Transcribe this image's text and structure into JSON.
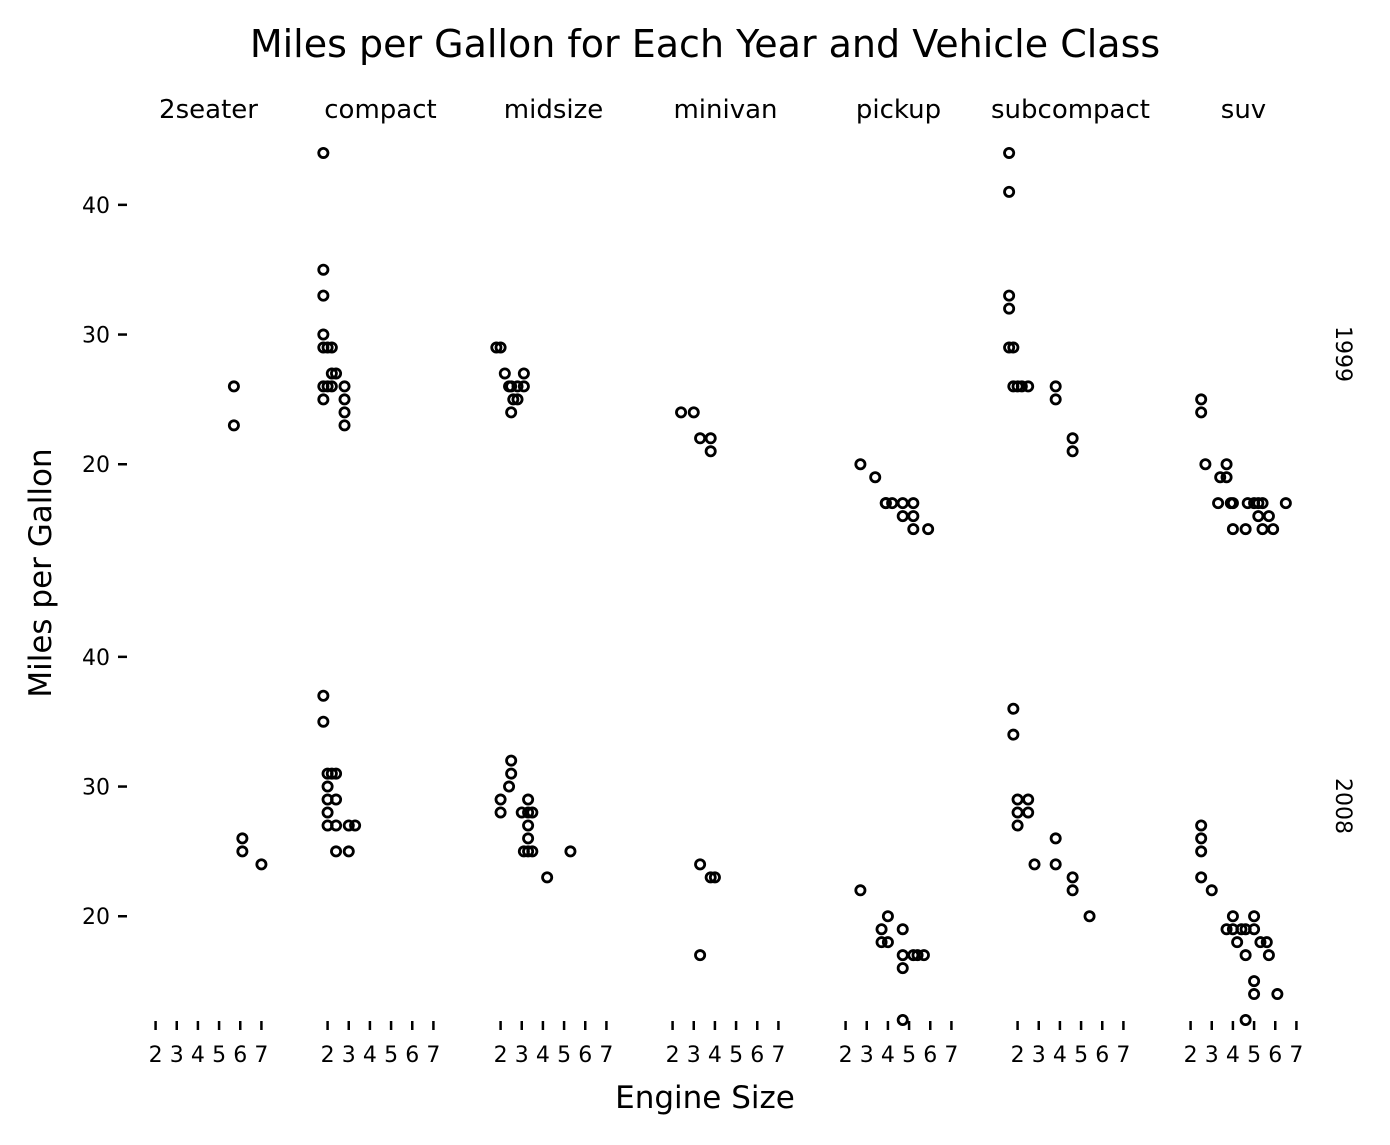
{
  "chart_data": {
    "type": "scatter",
    "title": "Miles per Gallon for Each Year and Vehicle Class",
    "xlabel": "Engine Size",
    "ylabel": "Miles per Gallon",
    "columns": [
      "2seater",
      "compact",
      "midsize",
      "minivan",
      "pickup",
      "subcompact",
      "suv"
    ],
    "rows": [
      "1999",
      "2008"
    ],
    "x_ticks": [
      2,
      3,
      4,
      5,
      6,
      7
    ],
    "y_ticks": [
      20,
      30,
      40
    ],
    "xlim": [
      1.5,
      7.5
    ],
    "ylim": [
      12,
      45
    ],
    "grid": false,
    "marker_color": "#000000",
    "panels": [
      {
        "column": "2seater",
        "row": "1999",
        "points": [
          [
            5.7,
            26
          ],
          [
            5.7,
            23
          ]
        ]
      },
      {
        "column": "compact",
        "row": "1999",
        "points": [
          [
            1.8,
            44
          ],
          [
            1.8,
            35
          ],
          [
            1.8,
            33
          ],
          [
            1.8,
            30
          ],
          [
            1.8,
            29
          ],
          [
            2.0,
            29
          ],
          [
            2.2,
            29
          ],
          [
            2.2,
            27
          ],
          [
            2.0,
            26
          ],
          [
            1.8,
            26
          ],
          [
            1.8,
            25
          ],
          [
            2.2,
            26
          ],
          [
            2.4,
            27
          ],
          [
            2.8,
            26
          ],
          [
            2.8,
            25
          ],
          [
            2.8,
            24
          ],
          [
            2.8,
            23
          ]
        ]
      },
      {
        "column": "midsize",
        "row": "1999",
        "points": [
          [
            1.8,
            29
          ],
          [
            2.0,
            29
          ],
          [
            2.2,
            27
          ],
          [
            2.4,
            26
          ],
          [
            2.5,
            26
          ],
          [
            2.8,
            26
          ],
          [
            2.8,
            25
          ],
          [
            2.6,
            25
          ],
          [
            3.1,
            27
          ],
          [
            3.1,
            26
          ],
          [
            2.5,
            24
          ]
        ]
      },
      {
        "column": "minivan",
        "row": "1999",
        "points": [
          [
            2.4,
            24
          ],
          [
            3.0,
            24
          ],
          [
            3.3,
            22
          ],
          [
            3.8,
            22
          ],
          [
            3.8,
            21
          ]
        ]
      },
      {
        "column": "pickup",
        "row": "1999",
        "points": [
          [
            2.7,
            20
          ],
          [
            3.4,
            19
          ],
          [
            3.9,
            17
          ],
          [
            3.9,
            17
          ],
          [
            4.2,
            17
          ],
          [
            4.7,
            17
          ],
          [
            4.7,
            16
          ],
          [
            5.2,
            17
          ],
          [
            5.2,
            16
          ],
          [
            5.2,
            15
          ],
          [
            5.9,
            15
          ]
        ]
      },
      {
        "column": "subcompact",
        "row": "1999",
        "points": [
          [
            1.6,
            44
          ],
          [
            1.6,
            41
          ],
          [
            1.6,
            33
          ],
          [
            1.6,
            32
          ],
          [
            1.6,
            29
          ],
          [
            1.8,
            29
          ],
          [
            1.8,
            26
          ],
          [
            2.0,
            26
          ],
          [
            2.2,
            26
          ],
          [
            2.5,
            26
          ],
          [
            3.8,
            26
          ],
          [
            3.8,
            25
          ],
          [
            4.6,
            22
          ],
          [
            4.6,
            21
          ]
        ]
      },
      {
        "column": "suv",
        "row": "1999",
        "points": [
          [
            2.5,
            25
          ],
          [
            2.5,
            24
          ],
          [
            2.7,
            20
          ],
          [
            3.4,
            19
          ],
          [
            3.7,
            20
          ],
          [
            3.7,
            19
          ],
          [
            3.3,
            17
          ],
          [
            3.9,
            17
          ],
          [
            4.0,
            17
          ],
          [
            4.0,
            15
          ],
          [
            4.6,
            15
          ],
          [
            4.7,
            17
          ],
          [
            5.0,
            17
          ],
          [
            5.2,
            17
          ],
          [
            5.4,
            17
          ],
          [
            5.2,
            16
          ],
          [
            5.7,
            16
          ],
          [
            5.9,
            15
          ],
          [
            6.5,
            17
          ],
          [
            5.4,
            15
          ]
        ]
      },
      {
        "column": "2seater",
        "row": "2008",
        "points": [
          [
            6.1,
            26
          ],
          [
            6.1,
            25
          ],
          [
            7.0,
            24
          ]
        ]
      },
      {
        "column": "compact",
        "row": "2008",
        "points": [
          [
            1.8,
            37
          ],
          [
            1.8,
            35
          ],
          [
            2.0,
            31
          ],
          [
            2.2,
            31
          ],
          [
            2.4,
            31
          ],
          [
            2.0,
            30
          ],
          [
            2.0,
            29
          ],
          [
            2.4,
            29
          ],
          [
            2.0,
            28
          ],
          [
            2.0,
            27
          ],
          [
            2.4,
            27
          ],
          [
            2.4,
            25
          ],
          [
            3.0,
            25
          ],
          [
            3.0,
            27
          ],
          [
            3.3,
            27
          ]
        ]
      },
      {
        "column": "midsize",
        "row": "2008",
        "points": [
          [
            2.0,
            29
          ],
          [
            2.0,
            28
          ],
          [
            2.5,
            32
          ],
          [
            2.5,
            31
          ],
          [
            2.4,
            30
          ],
          [
            3.3,
            29
          ],
          [
            3.3,
            28
          ],
          [
            3.0,
            28
          ],
          [
            3.5,
            28
          ],
          [
            3.3,
            27
          ],
          [
            3.3,
            26
          ],
          [
            3.1,
            25
          ],
          [
            3.3,
            25
          ],
          [
            3.5,
            25
          ],
          [
            5.3,
            25
          ],
          [
            4.2,
            23
          ]
        ]
      },
      {
        "column": "minivan",
        "row": "2008",
        "points": [
          [
            3.3,
            24
          ],
          [
            3.8,
            23
          ],
          [
            4.0,
            23
          ],
          [
            3.3,
            17
          ]
        ]
      },
      {
        "column": "pickup",
        "row": "2008",
        "points": [
          [
            2.7,
            22
          ],
          [
            3.7,
            19
          ],
          [
            3.7,
            18
          ],
          [
            4.0,
            20
          ],
          [
            4.0,
            18
          ],
          [
            4.7,
            19
          ],
          [
            4.7,
            17
          ],
          [
            4.7,
            16
          ],
          [
            4.7,
            12
          ],
          [
            5.2,
            17
          ],
          [
            5.4,
            17
          ],
          [
            5.7,
            17
          ]
        ]
      },
      {
        "column": "subcompact",
        "row": "2008",
        "points": [
          [
            1.8,
            36
          ],
          [
            1.8,
            34
          ],
          [
            2.0,
            29
          ],
          [
            2.0,
            28
          ],
          [
            2.0,
            27
          ],
          [
            2.5,
            29
          ],
          [
            2.5,
            28
          ],
          [
            2.8,
            24
          ],
          [
            3.8,
            26
          ],
          [
            3.8,
            24
          ],
          [
            4.6,
            23
          ],
          [
            4.6,
            22
          ],
          [
            5.4,
            20
          ]
        ]
      },
      {
        "column": "suv",
        "row": "2008",
        "points": [
          [
            2.5,
            27
          ],
          [
            2.5,
            26
          ],
          [
            2.5,
            25
          ],
          [
            2.5,
            23
          ],
          [
            3.0,
            22
          ],
          [
            3.7,
            19
          ],
          [
            4.0,
            19
          ],
          [
            4.0,
            20
          ],
          [
            4.2,
            18
          ],
          [
            4.4,
            19
          ],
          [
            4.6,
            19
          ],
          [
            4.6,
            17
          ],
          [
            4.6,
            12
          ],
          [
            5.0,
            20
          ],
          [
            5.0,
            19
          ],
          [
            5.3,
            18
          ],
          [
            5.6,
            18
          ],
          [
            5.7,
            17
          ],
          [
            5.0,
            15
          ],
          [
            5.0,
            14
          ],
          [
            6.1,
            14
          ]
        ]
      }
    ]
  }
}
